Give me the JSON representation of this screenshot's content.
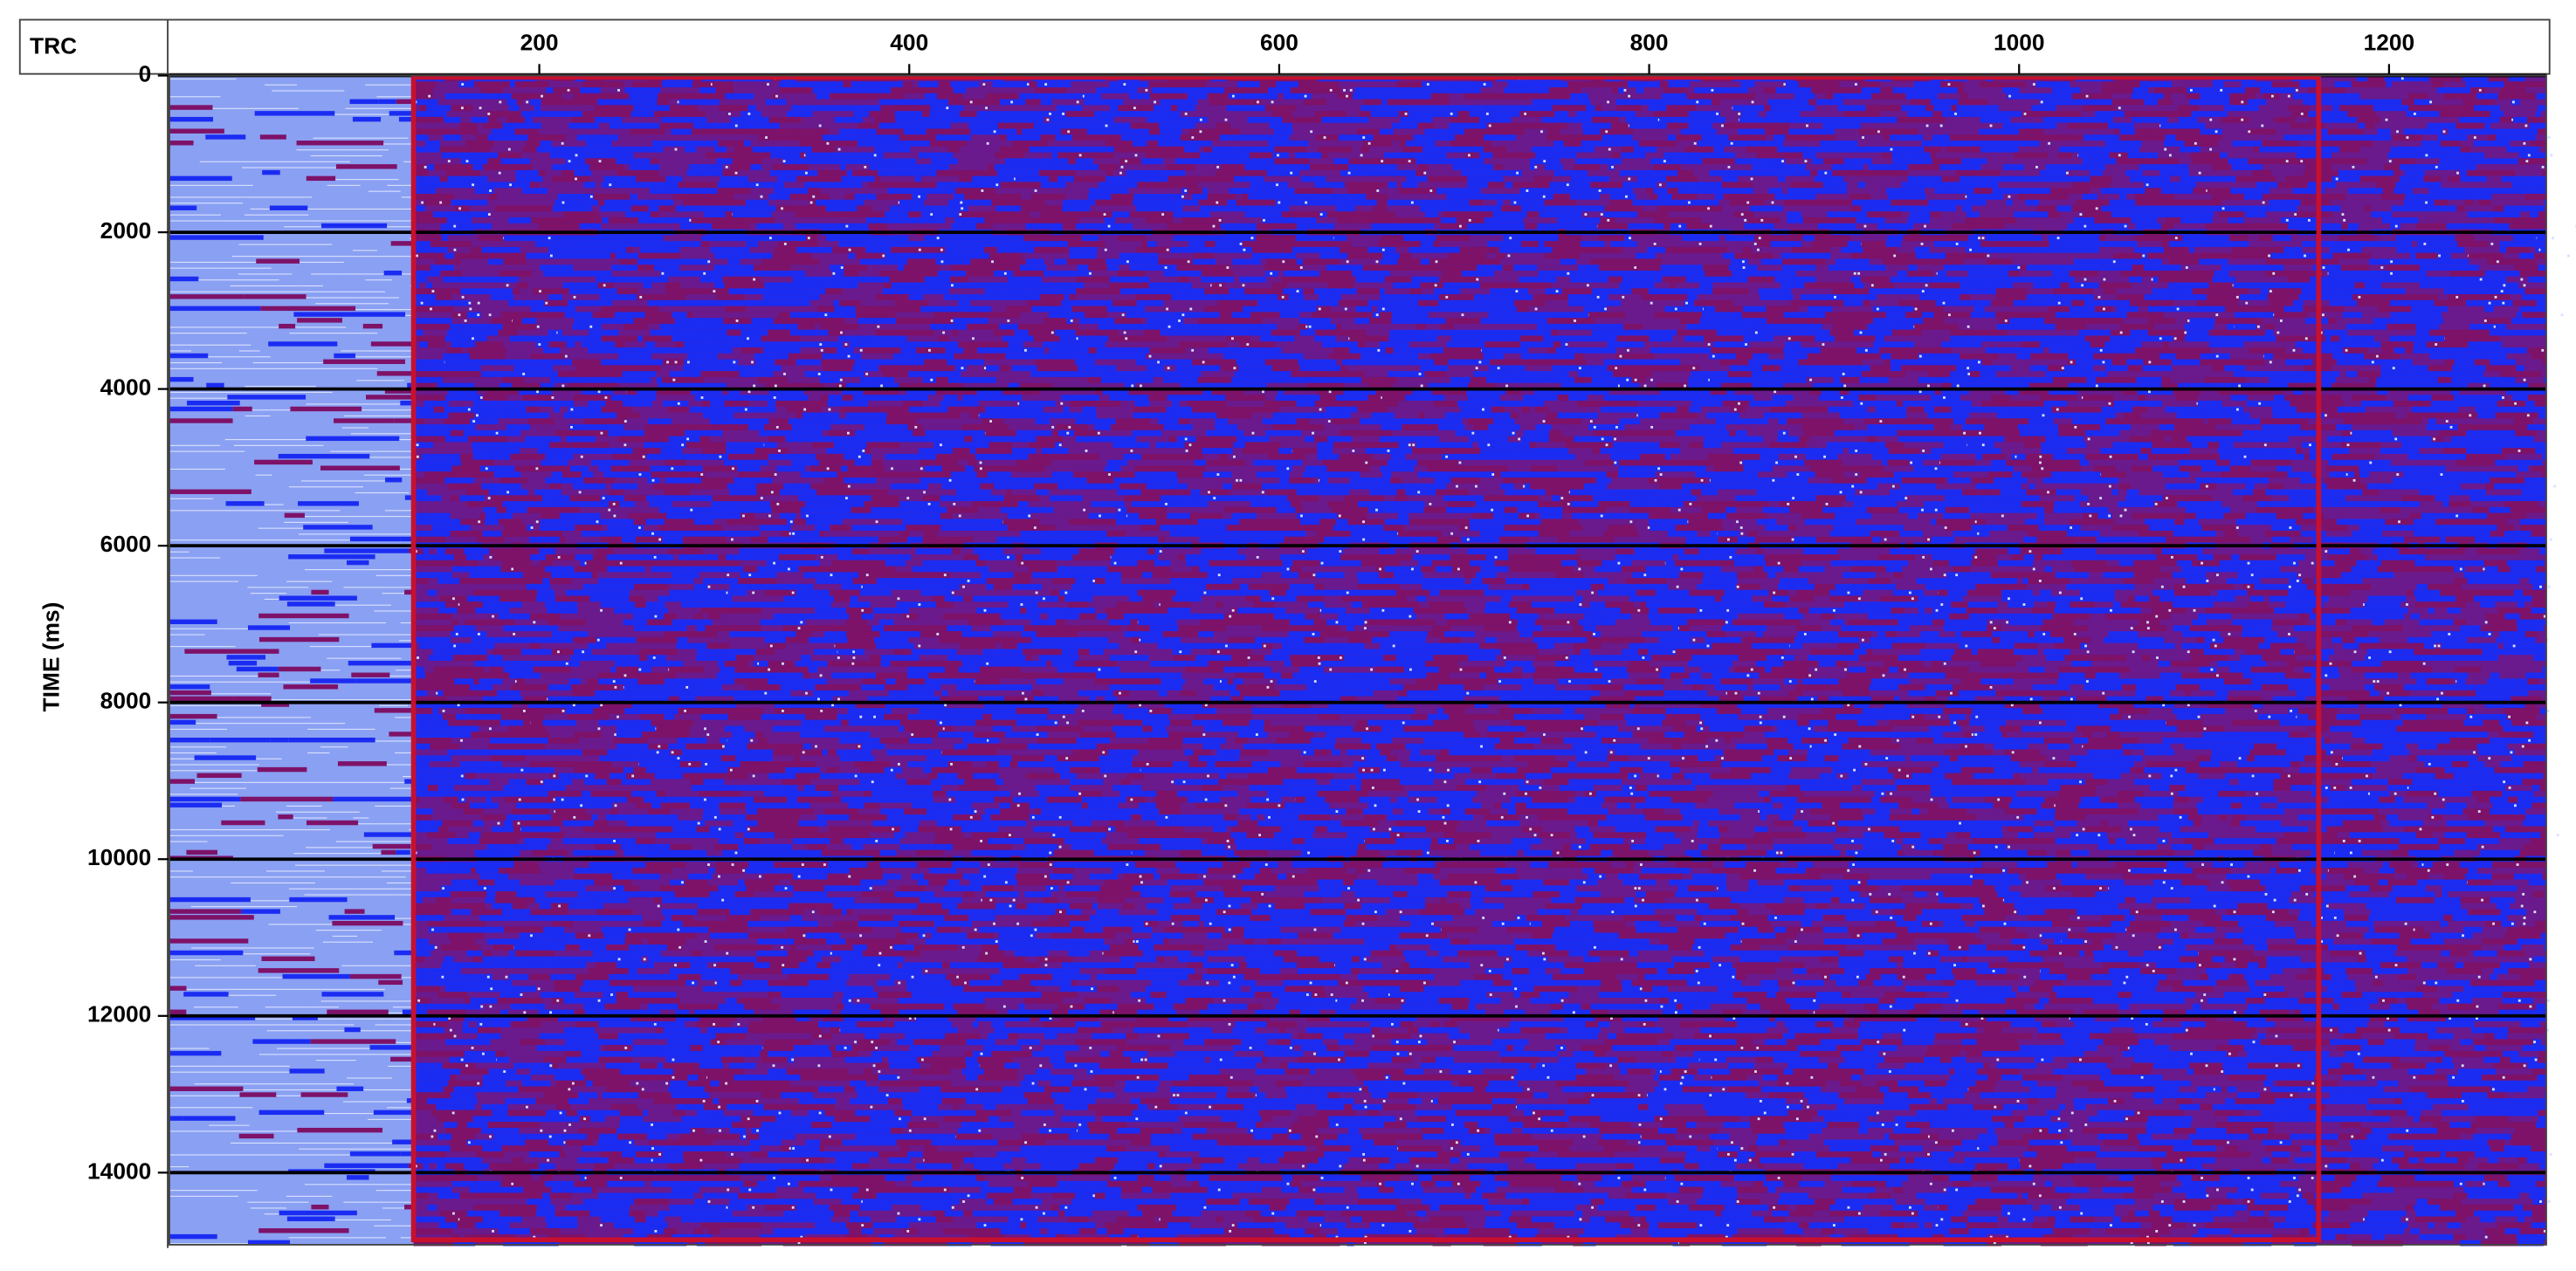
{
  "chart_data": {
    "type": "seismic",
    "xlabel": "TRC",
    "ylabel": "TIME (ms)",
    "xlim": [
      0,
      1285
    ],
    "xticks": [
      200,
      400,
      600,
      800,
      1000,
      1200
    ],
    "ylim": [
      0,
      14920
    ],
    "yticks": [
      0,
      2000,
      4000,
      6000,
      8000,
      10000,
      12000,
      14000
    ],
    "y_reversed": true,
    "grid": true,
    "grid_color": "#000000",
    "highlight_xlim": [
      132,
      1162
    ],
    "highlight_color": "#c8102e",
    "colors": [
      "#1b2cf2",
      "#6a1a8c",
      "#7d1268",
      "#8aa0f2",
      "#d8e0ff"
    ]
  }
}
